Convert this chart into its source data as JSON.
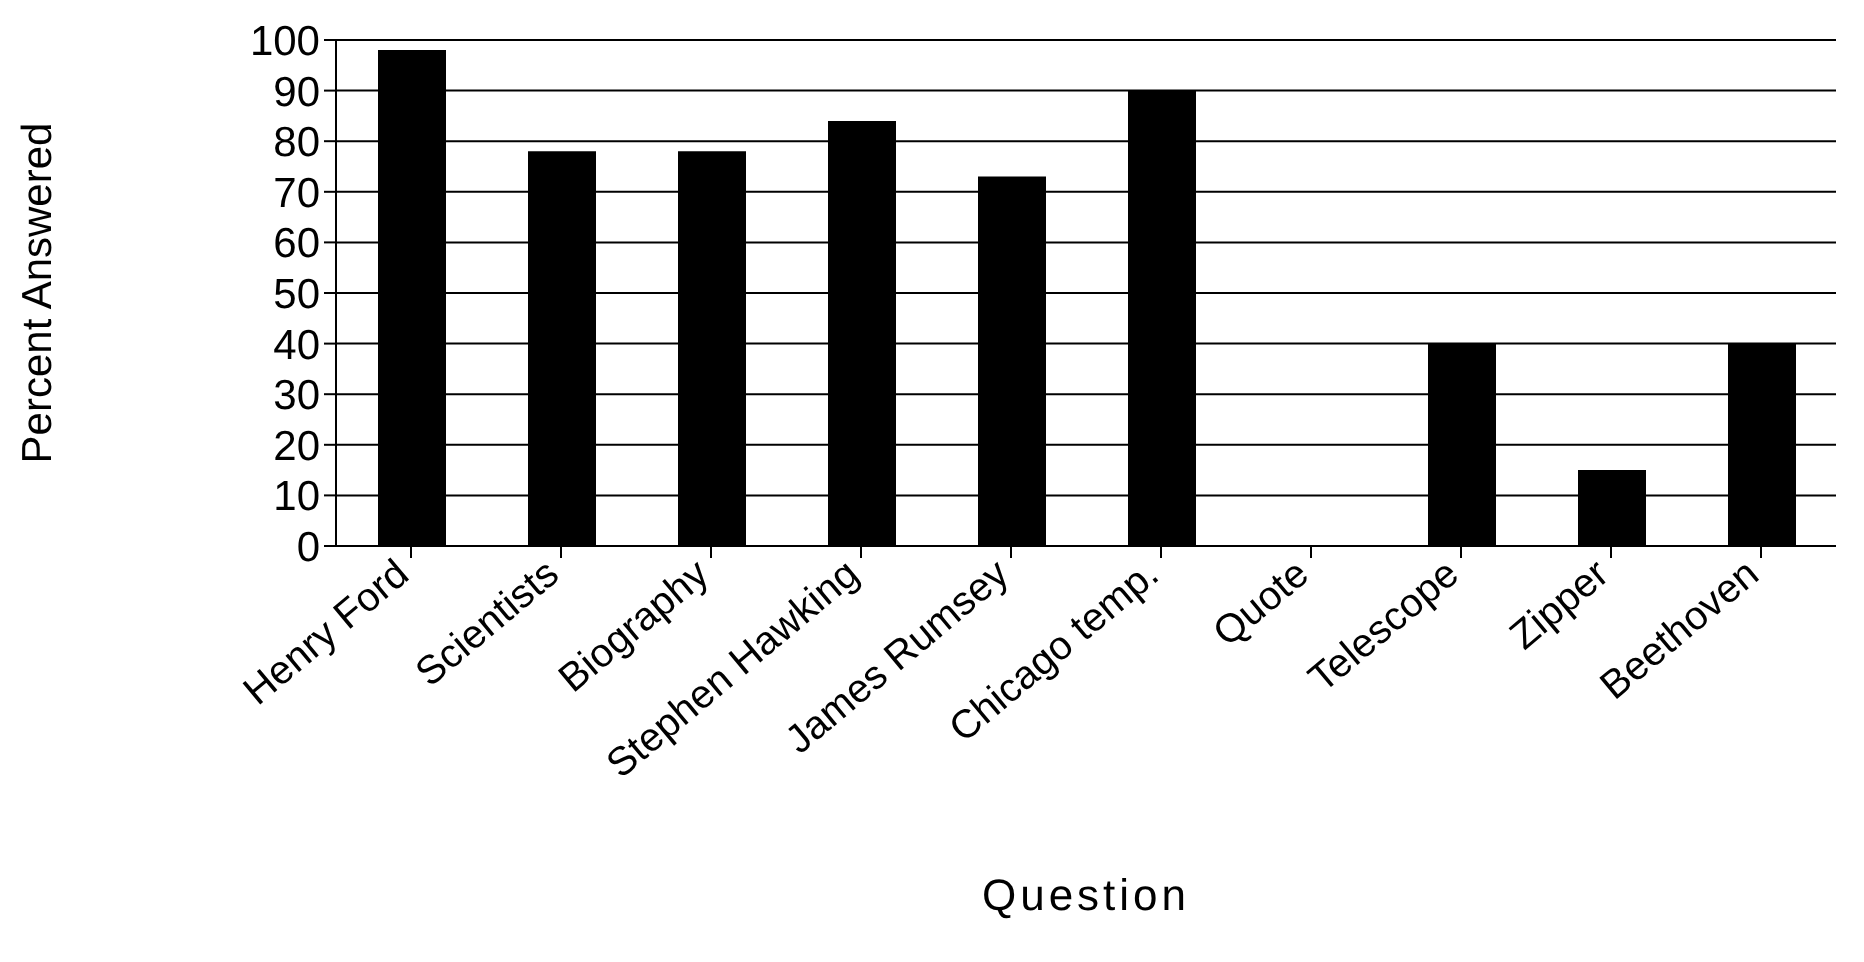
{
  "chart_data": {
    "type": "bar",
    "xlabel": "Question",
    "ylabel": "Percent Answered",
    "categories": [
      "Henry Ford",
      "Scientists",
      "Biography",
      "Stephen Hawking",
      "James Rumsey",
      "Chicago temp.",
      "Quote",
      "Telescope",
      "Zipper",
      "Beethoven"
    ],
    "values": [
      98,
      78,
      78,
      84,
      73,
      90,
      0,
      40,
      15,
      40
    ],
    "color": "#000000",
    "ylim": [
      0,
      100
    ],
    "yticks": [
      0,
      10,
      20,
      30,
      40,
      50,
      60,
      70,
      80,
      90,
      100
    ],
    "grid": "y"
  }
}
